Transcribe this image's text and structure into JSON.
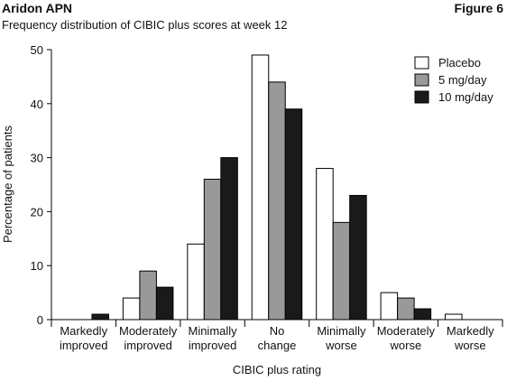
{
  "chart_data": {
    "type": "bar",
    "title": "Aridon APN",
    "figure_label": "Figure 6",
    "subtitle": "Frequency distribution of CIBIC plus scores at week 12",
    "y_label": "Percentage of patients",
    "x_label": "CIBIC plus rating",
    "categories": [
      [
        "Markedly",
        "improved"
      ],
      [
        "Moderately",
        "improved"
      ],
      [
        "Minimally",
        "improved"
      ],
      [
        "No",
        "change"
      ],
      [
        "Minimally",
        "worse"
      ],
      [
        "Moderately",
        "worse"
      ],
      [
        "Markedly",
        "worse"
      ]
    ],
    "series": [
      {
        "name": "Placebo",
        "color": "#ffffff",
        "values": [
          0,
          4,
          14,
          49,
          28,
          5,
          1
        ]
      },
      {
        "name": "5 mg/day",
        "color": "#999999",
        "values": [
          0,
          9,
          26,
          44,
          18,
          4,
          0
        ]
      },
      {
        "name": "10 mg/day",
        "color": "#1a1a1a",
        "values": [
          1,
          6,
          30,
          39,
          23,
          2,
          0
        ]
      }
    ],
    "ylim": [
      0,
      50
    ],
    "yticks": [
      0,
      10,
      20,
      30,
      40,
      50
    ],
    "legend": "top-right"
  }
}
